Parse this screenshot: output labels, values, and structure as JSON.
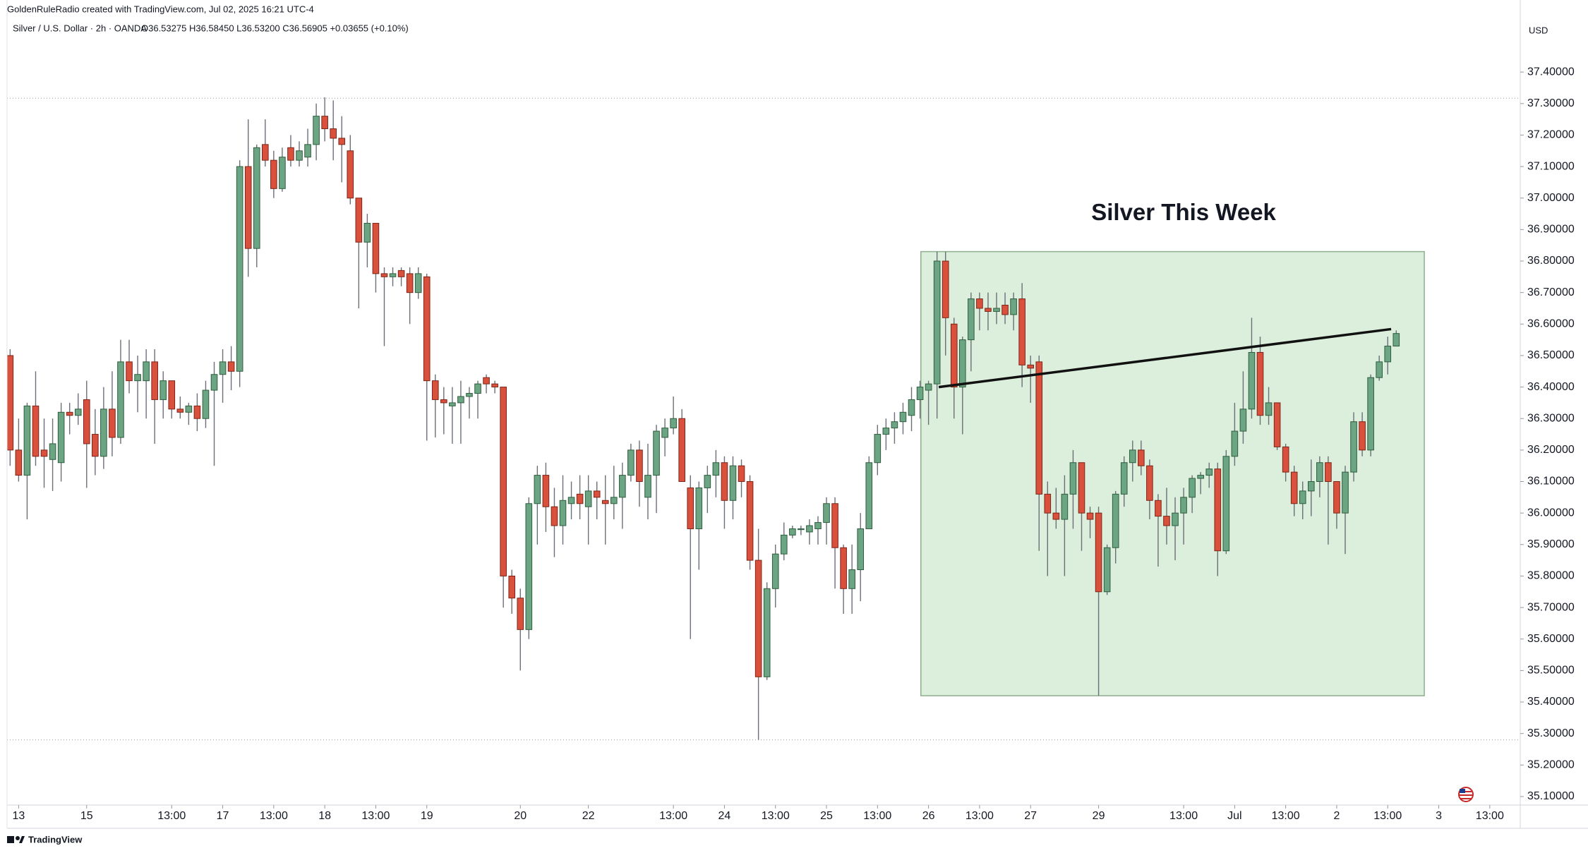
{
  "header": {
    "attribution": "GoldenRuleRadio created with TradingView.com, Jul 02, 2025 16:21 UTC-4",
    "brand": "TradingView"
  },
  "chart_data": {
    "type": "candlestick",
    "symbol": "Silver / U.S. Dollar · 2h · OANDA",
    "ohlc_legend": "O36.53275 H36.58450 L36.53200 C36.56905 +0.03655 (+0.10%)",
    "currency": "USD",
    "annotation": {
      "text": "Silver This Week",
      "x": 138,
      "y": 36.95
    },
    "box": {
      "x": [
        107.1,
        166.3
      ],
      "y": [
        35.42,
        36.83
      ],
      "color": "#dcefdc",
      "edge": "#8fae8f"
    },
    "trendline": {
      "x": [
        109.2,
        162.4
      ],
      "y": [
        36.4,
        36.584
      ],
      "color": "#111111"
    },
    "hlines": [
      37.317,
      35.28
    ],
    "up_color": "#6ca583",
    "down_color": "#d9503c",
    "xlim": [
      -0.36,
      177.5
    ],
    "ylim": [
      35.073,
      37.584
    ],
    "xticks": [
      {
        "value": 1,
        "label": "13"
      },
      {
        "value": 9,
        "label": "15"
      },
      {
        "value": 19,
        "label": "13:00"
      },
      {
        "value": 25,
        "label": "17"
      },
      {
        "value": 31,
        "label": "13:00"
      },
      {
        "value": 37,
        "label": "18"
      },
      {
        "value": 43,
        "label": "13:00"
      },
      {
        "value": 49,
        "label": "19"
      },
      {
        "value": 60,
        "label": "20"
      },
      {
        "value": 68,
        "label": "22"
      },
      {
        "value": 78,
        "label": "13:00"
      },
      {
        "value": 84,
        "label": "24"
      },
      {
        "value": 90,
        "label": "13:00"
      },
      {
        "value": 96,
        "label": "25"
      },
      {
        "value": 102,
        "label": "13:00"
      },
      {
        "value": 108,
        "label": "26"
      },
      {
        "value": 114,
        "label": "13:00"
      },
      {
        "value": 120,
        "label": "27"
      },
      {
        "value": 128,
        "label": "29"
      },
      {
        "value": 138,
        "label": "13:00"
      },
      {
        "value": 144,
        "label": "Jul"
      },
      {
        "value": 150,
        "label": "13:00"
      },
      {
        "value": 156,
        "label": "2"
      },
      {
        "value": 162,
        "label": "13:00"
      },
      {
        "value": 168,
        "label": "3"
      },
      {
        "value": 174,
        "label": "13:00"
      }
    ],
    "yticks": [
      {
        "value": 35.1,
        "label": "35.10000"
      },
      {
        "value": 35.2,
        "label": "35.20000"
      },
      {
        "value": 35.3,
        "label": "35.30000"
      },
      {
        "value": 35.4,
        "label": "35.40000"
      },
      {
        "value": 35.5,
        "label": "35.50000"
      },
      {
        "value": 35.6,
        "label": "35.60000"
      },
      {
        "value": 35.7,
        "label": "35.70000"
      },
      {
        "value": 35.8,
        "label": "35.80000"
      },
      {
        "value": 35.9,
        "label": "35.90000"
      },
      {
        "value": 36.0,
        "label": "36.00000"
      },
      {
        "value": 36.1,
        "label": "36.10000"
      },
      {
        "value": 36.2,
        "label": "36.20000"
      },
      {
        "value": 36.3,
        "label": "36.30000"
      },
      {
        "value": 36.4,
        "label": "36.40000"
      },
      {
        "value": 36.5,
        "label": "36.50000"
      },
      {
        "value": 36.6,
        "label": "36.60000"
      },
      {
        "value": 36.7,
        "label": "36.70000"
      },
      {
        "value": 36.8,
        "label": "36.80000"
      },
      {
        "value": 36.9,
        "label": "36.90000"
      },
      {
        "value": 37.0,
        "label": "37.00000"
      },
      {
        "value": 37.1,
        "label": "37.10000"
      },
      {
        "value": 37.2,
        "label": "37.20000"
      },
      {
        "value": 37.3,
        "label": "37.30000"
      },
      {
        "value": 37.4,
        "label": "37.40000"
      }
    ],
    "open": [
      36.5,
      36.2,
      36.12,
      36.34,
      36.2,
      36.17,
      36.16,
      36.32,
      36.31,
      36.36,
      36.25,
      36.18,
      36.33,
      36.24,
      36.48,
      36.42,
      36.42,
      36.48,
      36.36,
      36.42,
      36.33,
      36.32,
      36.34,
      36.3,
      36.39,
      36.44,
      36.48,
      36.45,
      37.1,
      36.84,
      37.17,
      37.12,
      37.03,
      37.16,
      37.12,
      37.13,
      37.17,
      37.26,
      37.22,
      37.19,
      37.15,
      37.0,
      36.86,
      36.92,
      36.76,
      36.75,
      36.77,
      36.76,
      36.7,
      36.75,
      36.42,
      36.36,
      36.34,
      36.35,
      36.37,
      36.38,
      36.43,
      36.41,
      36.4,
      35.8,
      35.73,
      35.63,
      36.03,
      36.12,
      36.02,
      35.96,
      36.03,
      36.06,
      36.02,
      36.07,
      36.04,
      36.03,
      36.05,
      36.12,
      36.2,
      36.05,
      36.12,
      36.24,
      36.27,
      36.3,
      36.08,
      35.95,
      36.08,
      36.12,
      36.16,
      36.04,
      36.15,
      36.1,
      35.85,
      35.48,
      35.76,
      35.87,
      35.93,
      35.95,
      35.94,
      35.95,
      35.97,
      36.03,
      35.89,
      35.76,
      35.82,
      35.95,
      36.16,
      36.25,
      36.27,
      36.29,
      36.31,
      36.36,
      36.39,
      36.41,
      36.8,
      36.6,
      36.4,
      36.55,
      36.68,
      36.65,
      36.64,
      36.66,
      36.63,
      36.68,
      36.47,
      36.48,
      36.06,
      36.0,
      35.98,
      36.06,
      36.16,
      36.0,
      36.0,
      35.75,
      35.89,
      36.06,
      36.16,
      36.2,
      36.15,
      36.04,
      35.99,
      35.96,
      36.0,
      36.05,
      36.11,
      36.12,
      36.14,
      35.88,
      36.18,
      36.26,
      36.33,
      36.51,
      36.31,
      36.35,
      36.21,
      36.13,
      36.03,
      36.07,
      36.1,
      36.16,
      36.1,
      36.0,
      36.13,
      36.29,
      36.2,
      36.43,
      36.48,
      36.53
    ],
    "high": [
      36.52,
      36.3,
      36.35,
      36.45,
      36.3,
      36.3,
      36.35,
      36.35,
      36.38,
      36.42,
      36.33,
      36.4,
      36.45,
      36.55,
      36.55,
      36.5,
      36.52,
      36.52,
      36.45,
      36.42,
      36.37,
      36.35,
      36.38,
      36.42,
      36.48,
      36.52,
      36.53,
      37.12,
      37.25,
      37.17,
      37.25,
      37.15,
      37.16,
      37.2,
      37.18,
      37.22,
      37.3,
      37.32,
      37.31,
      37.26,
      37.2,
      37.0,
      36.95,
      36.92,
      36.78,
      36.78,
      36.78,
      36.78,
      36.78,
      36.76,
      36.44,
      36.4,
      36.4,
      36.42,
      36.4,
      36.42,
      36.44,
      36.42,
      36.4,
      35.82,
      35.76,
      36.05,
      36.15,
      36.16,
      36.08,
      36.12,
      36.1,
      36.12,
      36.12,
      36.1,
      36.12,
      36.15,
      36.16,
      36.22,
      36.23,
      36.22,
      36.28,
      36.3,
      36.37,
      36.33,
      36.12,
      36.1,
      36.15,
      36.2,
      36.18,
      36.18,
      36.17,
      36.12,
      35.95,
      35.78,
      35.9,
      35.97,
      35.96,
      35.96,
      35.98,
      35.99,
      36.05,
      36.05,
      35.9,
      35.9,
      36.0,
      36.18,
      36.28,
      36.3,
      36.32,
      36.35,
      36.4,
      36.42,
      36.42,
      36.83,
      36.83,
      36.62,
      36.56,
      36.7,
      36.7,
      36.7,
      36.7,
      36.7,
      36.7,
      36.73,
      36.5,
      36.5,
      36.1,
      36.08,
      36.12,
      36.2,
      36.16,
      36.02,
      36.02,
      35.9,
      36.07,
      36.18,
      36.23,
      36.23,
      36.17,
      36.06,
      36.08,
      36.05,
      36.08,
      36.12,
      36.13,
      36.16,
      36.16,
      36.2,
      36.35,
      36.45,
      36.62,
      36.56,
      36.4,
      36.35,
      36.22,
      36.15,
      36.1,
      36.17,
      36.18,
      36.18,
      36.1,
      36.15,
      36.32,
      36.32,
      36.44,
      36.5,
      36.56,
      36.58
    ],
    "low": [
      36.15,
      36.1,
      35.98,
      36.15,
      36.08,
      36.07,
      36.1,
      36.25,
      36.28,
      36.08,
      36.12,
      36.14,
      36.18,
      36.22,
      36.38,
      36.32,
      36.3,
      36.22,
      36.3,
      36.3,
      36.3,
      36.28,
      36.26,
      36.27,
      36.15,
      36.35,
      36.39,
      36.4,
      36.75,
      36.78,
      37.1,
      37.0,
      37.02,
      37.1,
      37.1,
      37.1,
      37.12,
      37.18,
      37.12,
      37.05,
      36.98,
      36.65,
      36.78,
      36.7,
      36.53,
      36.72,
      36.72,
      36.6,
      36.68,
      36.23,
      36.24,
      36.25,
      36.22,
      36.22,
      36.3,
      36.3,
      36.38,
      36.38,
      35.7,
      35.68,
      35.5,
      35.6,
      35.9,
      35.94,
      35.86,
      35.9,
      35.98,
      35.98,
      35.9,
      35.98,
      35.9,
      35.98,
      35.95,
      36.1,
      36.02,
      35.98,
      36.0,
      36.18,
      36.25,
      36.1,
      35.6,
      35.82,
      36.0,
      36.05,
      35.95,
      35.98,
      36.05,
      35.82,
      35.28,
      35.47,
      35.7,
      35.85,
      35.92,
      35.93,
      35.9,
      35.9,
      35.9,
      35.76,
      35.68,
      35.68,
      35.72,
      35.95,
      36.12,
      36.2,
      36.22,
      36.25,
      36.26,
      36.3,
      36.28,
      36.3,
      36.5,
      36.3,
      36.25,
      36.45,
      36.58,
      36.58,
      36.6,
      36.6,
      36.58,
      36.4,
      36.35,
      35.88,
      35.8,
      35.95,
      35.8,
      35.95,
      35.88,
      35.92,
      35.42,
      35.74,
      35.84,
      36.02,
      36.1,
      36.12,
      35.98,
      35.83,
      35.9,
      35.85,
      35.9,
      36.0,
      36.06,
      36.08,
      35.8,
      35.87,
      36.15,
      36.22,
      36.3,
      36.28,
      36.28,
      36.2,
      36.1,
      35.99,
      35.98,
      35.99,
      36.05,
      35.9,
      35.95,
      35.87,
      36.1,
      36.18,
      36.18,
      36.42,
      36.44,
      36.53
    ],
    "close": [
      36.2,
      36.12,
      36.34,
      36.18,
      36.18,
      36.22,
      36.32,
      36.31,
      36.33,
      36.22,
      36.18,
      36.33,
      36.24,
      36.48,
      36.42,
      36.44,
      36.48,
      36.36,
      36.42,
      36.33,
      36.32,
      36.34,
      36.3,
      36.39,
      36.44,
      36.48,
      36.45,
      37.1,
      36.84,
      37.16,
      37.12,
      37.03,
      37.13,
      37.12,
      37.15,
      37.17,
      37.26,
      37.22,
      37.19,
      37.17,
      37.0,
      36.86,
      36.92,
      36.76,
      36.75,
      36.76,
      36.75,
      36.7,
      36.76,
      36.42,
      36.36,
      36.35,
      36.35,
      36.37,
      36.38,
      36.41,
      36.41,
      36.4,
      35.8,
      35.73,
      35.63,
      36.03,
      36.12,
      36.02,
      35.96,
      36.04,
      36.05,
      36.03,
      36.07,
      36.05,
      36.03,
      36.05,
      36.12,
      36.2,
      36.1,
      36.12,
      36.26,
      36.27,
      36.3,
      36.1,
      35.95,
      36.08,
      36.12,
      36.16,
      36.04,
      36.15,
      36.1,
      35.85,
      35.48,
      35.76,
      35.87,
      35.93,
      35.95,
      35.95,
      35.96,
      35.97,
      36.03,
      35.89,
      35.76,
      35.82,
      35.95,
      36.16,
      36.25,
      36.27,
      36.29,
      36.32,
      36.36,
      36.4,
      36.41,
      36.8,
      36.62,
      36.4,
      36.55,
      36.68,
      36.65,
      36.64,
      36.65,
      36.63,
      36.68,
      36.47,
      36.46,
      36.06,
      36.0,
      35.98,
      36.06,
      36.16,
      36.0,
      35.98,
      35.75,
      35.89,
      36.06,
      36.16,
      36.2,
      36.15,
      36.04,
      35.99,
      35.96,
      36.0,
      36.05,
      36.11,
      36.12,
      36.14,
      35.88,
      36.18,
      36.26,
      36.33,
      36.51,
      36.31,
      36.35,
      36.21,
      36.13,
      36.03,
      36.07,
      36.1,
      36.16,
      36.1,
      36.0,
      36.13,
      36.29,
      36.2,
      36.43,
      36.48,
      36.53,
      36.57
    ]
  }
}
